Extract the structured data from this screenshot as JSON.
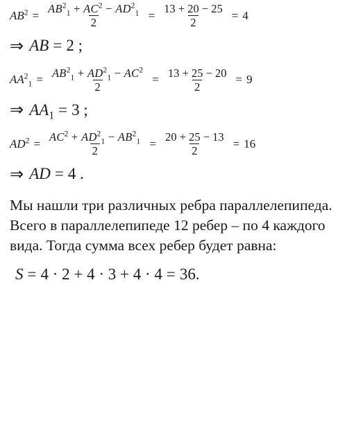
{
  "colors": {
    "text": "#1a1a1a",
    "background": "#ffffff"
  },
  "eq1": {
    "lhs_var": "AB",
    "lhs_exp": "2",
    "num_t1": "AB",
    "num_t1_sub": "1",
    "num_t1_sup": "2",
    "num_t2": "AC",
    "num_t2_sup": "2",
    "num_t3": "AD",
    "num_t3_sub": "1",
    "num_t3_sup": "2",
    "op1": "+",
    "op2": "−",
    "den": "2",
    "num2": "13 + 20 − 25",
    "den2": "2",
    "rhs": "4",
    "result_var": "AB",
    "result_val": "2"
  },
  "eq2": {
    "lhs_var": "AA",
    "lhs_sub": "1",
    "lhs_exp": "2",
    "num_t1": "AB",
    "num_t1_sub": "1",
    "num_t1_sup": "2",
    "num_t2": "AD",
    "num_t2_sub": "1",
    "num_t2_sup": "2",
    "num_t3": "AC",
    "num_t3_sup": "2",
    "op1": "+",
    "op2": "−",
    "den": "2",
    "num2": "13 + 25 − 20",
    "den2": "2",
    "rhs": "9",
    "result_var": "AA",
    "result_sub": "1",
    "result_val": "3"
  },
  "eq3": {
    "lhs_var": "AD",
    "lhs_exp": "2",
    "num_t1": "AC",
    "num_t1_sup": "2",
    "num_t2": "AD",
    "num_t2_sub": "1",
    "num_t2_sup": "2",
    "num_t3": "AB",
    "num_t3_sub": "1",
    "num_t3_sup": "2",
    "op1": "+",
    "op2": "−",
    "den": "2",
    "num2": "20 + 25 − 13",
    "den2": "2",
    "rhs": "16",
    "result_var": "AD",
    "result_val": "4"
  },
  "text": {
    "p1a": "Мы нашли три различных ребра параллелепипеда. Всего в параллелепипеде ",
    "p1_n1": "12",
    "p1b": " ребер – по ",
    "p1_n2": "4",
    "p1c": " каждого вида. Тогда сумма всех ребер будет равна:"
  },
  "final": {
    "var": "S",
    "expr": "4 · 2 + 4 · 3 + 4 · 4",
    "val": "36"
  },
  "sym": {
    "eq": "=",
    "arrow": "⇒",
    "semicolon": ";",
    "period": "."
  }
}
